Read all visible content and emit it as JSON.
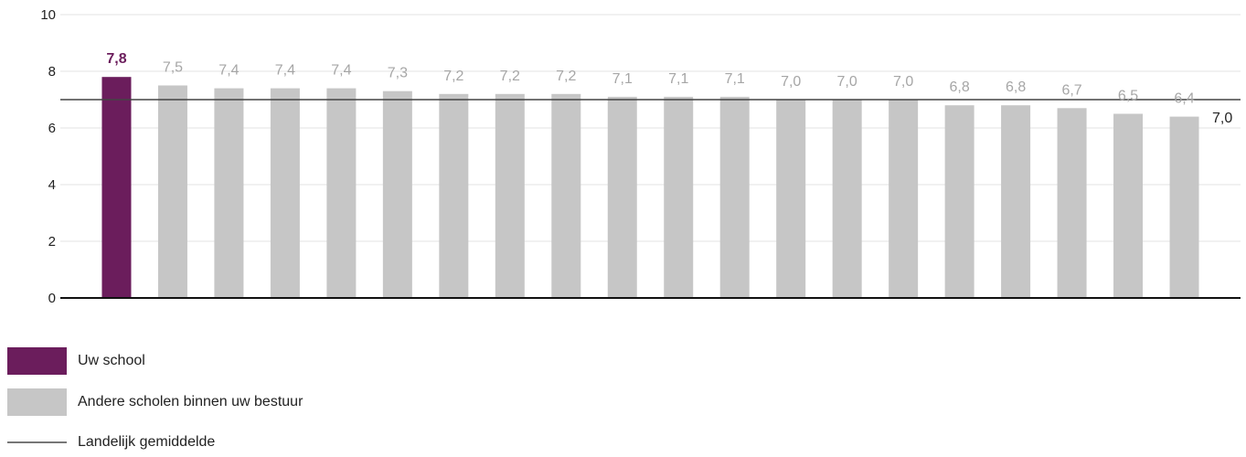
{
  "chart_data": {
    "type": "bar",
    "ylim": [
      0,
      10
    ],
    "yticks": [
      0,
      2,
      4,
      6,
      8,
      10
    ],
    "ytick_labels": [
      "0",
      "2",
      "4",
      "6",
      "8",
      "10"
    ],
    "grid": true,
    "legend_position": "bottom-left",
    "series": [
      {
        "name": "Uw school",
        "color": "#6b1d5c",
        "label_color": "#6b1d5c"
      },
      {
        "name": "Andere scholen binnen uw bestuur",
        "color": "#c6c6c6",
        "label_color": "#a6a6a6"
      }
    ],
    "reference_line": {
      "name": "Landelijk gemiddelde",
      "value": 7.0,
      "label": "7,0",
      "color": "#444444",
      "legend_color": "#777777"
    },
    "bars": [
      {
        "value": 7.8,
        "label": "7,8",
        "series": "Uw school"
      },
      {
        "value": 7.5,
        "label": "7,5",
        "series": "Andere scholen binnen uw bestuur"
      },
      {
        "value": 7.4,
        "label": "7,4",
        "series": "Andere scholen binnen uw bestuur"
      },
      {
        "value": 7.4,
        "label": "7,4",
        "series": "Andere scholen binnen uw bestuur"
      },
      {
        "value": 7.4,
        "label": "7,4",
        "series": "Andere scholen binnen uw bestuur"
      },
      {
        "value": 7.3,
        "label": "7,3",
        "series": "Andere scholen binnen uw bestuur"
      },
      {
        "value": 7.2,
        "label": "7,2",
        "series": "Andere scholen binnen uw bestuur"
      },
      {
        "value": 7.2,
        "label": "7,2",
        "series": "Andere scholen binnen uw bestuur"
      },
      {
        "value": 7.2,
        "label": "7,2",
        "series": "Andere scholen binnen uw bestuur"
      },
      {
        "value": 7.1,
        "label": "7,1",
        "series": "Andere scholen binnen uw bestuur"
      },
      {
        "value": 7.1,
        "label": "7,1",
        "series": "Andere scholen binnen uw bestuur"
      },
      {
        "value": 7.1,
        "label": "7,1",
        "series": "Andere scholen binnen uw bestuur"
      },
      {
        "value": 7.0,
        "label": "7,0",
        "series": "Andere scholen binnen uw bestuur"
      },
      {
        "value": 7.0,
        "label": "7,0",
        "series": "Andere scholen binnen uw bestuur"
      },
      {
        "value": 7.0,
        "label": "7,0",
        "series": "Andere scholen binnen uw bestuur"
      },
      {
        "value": 6.8,
        "label": "6,8",
        "series": "Andere scholen binnen uw bestuur"
      },
      {
        "value": 6.8,
        "label": "6,8",
        "series": "Andere scholen binnen uw bestuur"
      },
      {
        "value": 6.7,
        "label": "6,7",
        "series": "Andere scholen binnen uw bestuur"
      },
      {
        "value": 6.5,
        "label": "6,5",
        "series": "Andere scholen binnen uw bestuur"
      },
      {
        "value": 6.4,
        "label": "6,4",
        "series": "Andere scholen binnen uw bestuur"
      }
    ]
  }
}
